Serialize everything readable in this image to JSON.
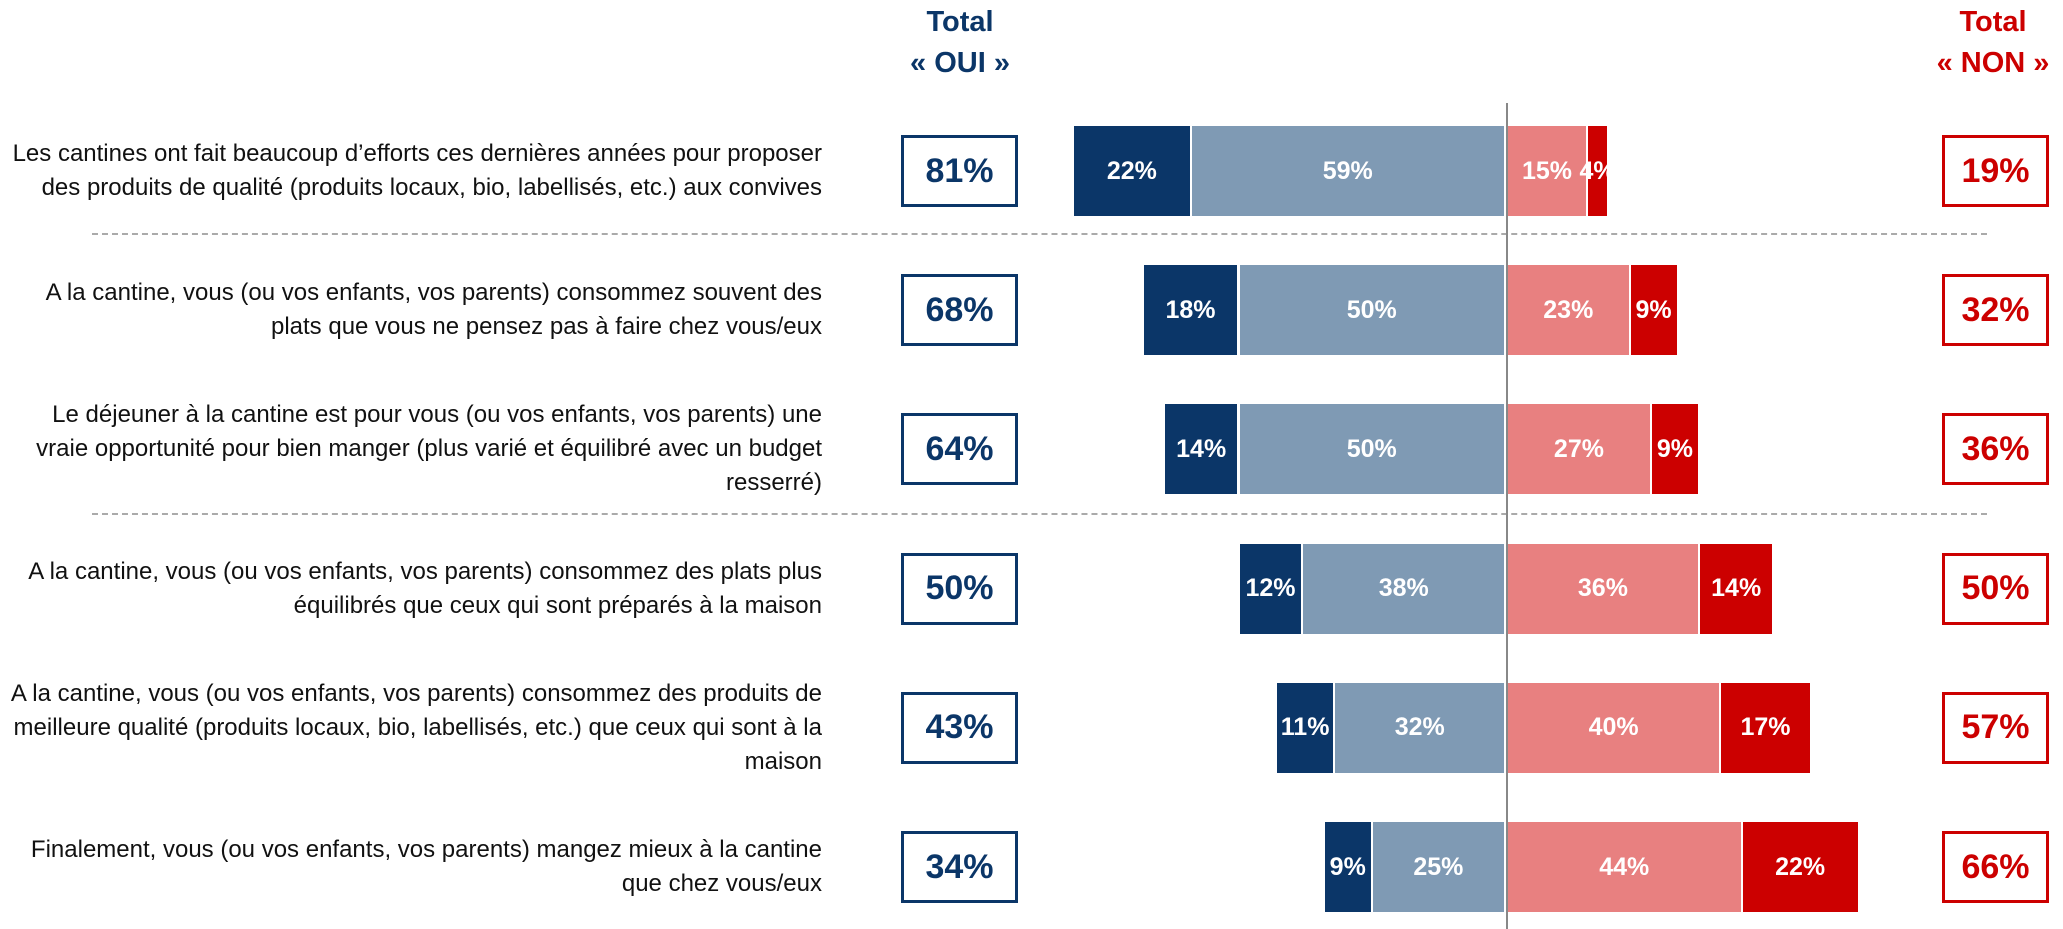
{
  "chart_data": {
    "type": "diverging-bar",
    "categories": [
      "Les cantines ont fait beaucoup d’efforts ces dernières années pour proposer des produits de qualité (produits locaux, bio, labellisés, etc.) aux convives",
      "A la cantine, vous (ou vos enfants, vos parents) consommez souvent des plats que vous ne pensez pas à faire chez vous/eux",
      "Le déjeuner à la cantine est pour vous (ou vos enfants, vos parents) une vraie opportunité pour bien manger (plus varié et équilibré avec un budget resserré)",
      "A la cantine, vous (ou vos enfants, vos parents) consommez des plats plus équilibrés que ceux qui sont préparés à la maison",
      "A la cantine, vous (ou vos enfants, vos parents) consommez des produits de meilleure qualité (produits locaux, bio, labellisés, etc.) que ceux qui sont à la maison",
      "Finalement, vous (ou vos enfants, vos parents) mangez mieux à la cantine que chez vous/eux"
    ],
    "series": [
      {
        "color": "#0b3668",
        "values": [
          22,
          18,
          14,
          12,
          11,
          9
        ],
        "value_labels": [
          "22%",
          "18%",
          "14%",
          "12%",
          "11%",
          "9%"
        ]
      },
      {
        "color": "#7f9ab4",
        "values": [
          59,
          50,
          50,
          38,
          32,
          25
        ],
        "value_labels": [
          "59%",
          "50%",
          "50%",
          "38%",
          "32%",
          "25%"
        ]
      },
      {
        "color": "#e88080",
        "values": [
          15,
          23,
          27,
          36,
          40,
          44
        ],
        "value_labels": [
          "15%",
          "23%",
          "27%",
          "36%",
          "40%",
          "44%"
        ]
      },
      {
        "color": "#cc0000",
        "values": [
          4,
          9,
          9,
          14,
          17,
          22
        ],
        "value_labels": [
          "4%",
          "9%",
          "9%",
          "14%",
          "17%",
          "22%"
        ]
      }
    ],
    "totals": [
      {
        "header": [
          "Total",
          "« OUI »"
        ],
        "color": "#0b3668",
        "values": [
          81,
          68,
          64,
          50,
          43,
          34
        ],
        "value_labels": [
          "81%",
          "68%",
          "64%",
          "50%",
          "43%",
          "34%"
        ]
      },
      {
        "header": [
          "Total",
          "« NON »"
        ],
        "color": "#cc0000",
        "values": [
          19,
          32,
          36,
          50,
          57,
          66
        ],
        "value_labels": [
          "19%",
          "32%",
          "36%",
          "50%",
          "57%",
          "66%"
        ]
      }
    ]
  }
}
